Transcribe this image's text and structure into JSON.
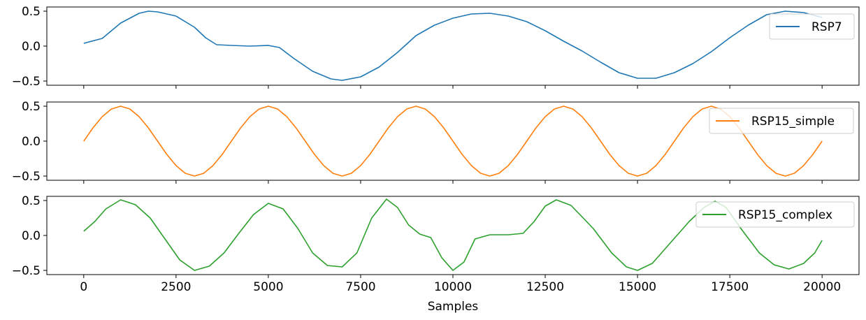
{
  "chart_data": {
    "type": "line",
    "xlabel": "Samples",
    "xlim": [
      -1000,
      21000
    ],
    "x_ticks": [
      0,
      2500,
      5000,
      7500,
      10000,
      12500,
      15000,
      17500,
      20000
    ],
    "x_tick_labels": [
      "0",
      "2500",
      "5000",
      "7500",
      "10000",
      "12500",
      "15000",
      "17500",
      "20000"
    ],
    "sample_count": 20000,
    "legend_position": "upper right",
    "subplots": [
      {
        "series_name": "RSP7",
        "color": "#1f77b4",
        "ylim": [
          -0.56,
          0.56
        ],
        "y_ticks": [
          -0.5,
          0.0,
          0.5
        ],
        "y_tick_labels": [
          "−0.5",
          "0.0",
          "0.5"
        ],
        "points": [
          [
            0,
            0.04
          ],
          [
            500,
            0.11
          ],
          [
            1000,
            0.33
          ],
          [
            1500,
            0.47
          ],
          [
            1750,
            0.5
          ],
          [
            2000,
            0.49
          ],
          [
            2500,
            0.43
          ],
          [
            3000,
            0.27
          ],
          [
            3300,
            0.12
          ],
          [
            3600,
            0.02
          ],
          [
            4000,
            0.01
          ],
          [
            4500,
            0.0
          ],
          [
            5000,
            0.01
          ],
          [
            5300,
            -0.02
          ],
          [
            5700,
            -0.18
          ],
          [
            6200,
            -0.36
          ],
          [
            6700,
            -0.47
          ],
          [
            7000,
            -0.49
          ],
          [
            7500,
            -0.44
          ],
          [
            8000,
            -0.3
          ],
          [
            8500,
            -0.09
          ],
          [
            9000,
            0.15
          ],
          [
            9500,
            0.3
          ],
          [
            10000,
            0.4
          ],
          [
            10500,
            0.46
          ],
          [
            11000,
            0.47
          ],
          [
            11500,
            0.43
          ],
          [
            12000,
            0.35
          ],
          [
            12500,
            0.22
          ],
          [
            13000,
            0.07
          ],
          [
            13500,
            -0.07
          ],
          [
            14000,
            -0.23
          ],
          [
            14500,
            -0.38
          ],
          [
            15000,
            -0.46
          ],
          [
            15500,
            -0.46
          ],
          [
            16000,
            -0.38
          ],
          [
            16500,
            -0.25
          ],
          [
            17000,
            -0.08
          ],
          [
            17500,
            0.12
          ],
          [
            18000,
            0.3
          ],
          [
            18500,
            0.45
          ],
          [
            19000,
            0.5
          ],
          [
            19500,
            0.48
          ],
          [
            20000,
            0.41
          ]
        ]
      },
      {
        "series_name": "RSP15_simple",
        "color": "#ff7f0e",
        "ylim": [
          -0.56,
          0.56
        ],
        "y_ticks": [
          -0.5,
          0.0,
          0.5
        ],
        "y_tick_labels": [
          "−0.5",
          "0.0",
          "0.5"
        ],
        "points": [
          [
            0,
            0.0
          ],
          [
            250,
            0.19
          ],
          [
            500,
            0.35
          ],
          [
            750,
            0.46
          ],
          [
            1000,
            0.5
          ],
          [
            1250,
            0.46
          ],
          [
            1500,
            0.35
          ],
          [
            1750,
            0.19
          ],
          [
            2000,
            0.0
          ],
          [
            2250,
            -0.19
          ],
          [
            2500,
            -0.35
          ],
          [
            2750,
            -0.46
          ],
          [
            3000,
            -0.5
          ],
          [
            3250,
            -0.46
          ],
          [
            3500,
            -0.35
          ],
          [
            3750,
            -0.19
          ],
          [
            4000,
            0.0
          ],
          [
            4250,
            0.19
          ],
          [
            4500,
            0.35
          ],
          [
            4750,
            0.46
          ],
          [
            5000,
            0.5
          ],
          [
            5250,
            0.46
          ],
          [
            5500,
            0.35
          ],
          [
            5750,
            0.19
          ],
          [
            6000,
            0.0
          ],
          [
            6250,
            -0.19
          ],
          [
            6500,
            -0.35
          ],
          [
            6750,
            -0.46
          ],
          [
            7000,
            -0.5
          ],
          [
            7250,
            -0.46
          ],
          [
            7500,
            -0.35
          ],
          [
            7750,
            -0.19
          ],
          [
            8000,
            0.0
          ],
          [
            8250,
            0.19
          ],
          [
            8500,
            0.35
          ],
          [
            8750,
            0.46
          ],
          [
            9000,
            0.5
          ],
          [
            9250,
            0.46
          ],
          [
            9500,
            0.35
          ],
          [
            9750,
            0.19
          ],
          [
            10000,
            0.0
          ],
          [
            10250,
            -0.19
          ],
          [
            10500,
            -0.35
          ],
          [
            10750,
            -0.46
          ],
          [
            11000,
            -0.5
          ],
          [
            11250,
            -0.46
          ],
          [
            11500,
            -0.35
          ],
          [
            11750,
            -0.19
          ],
          [
            12000,
            0.0
          ],
          [
            12250,
            0.19
          ],
          [
            12500,
            0.35
          ],
          [
            12750,
            0.46
          ],
          [
            13000,
            0.5
          ],
          [
            13250,
            0.46
          ],
          [
            13500,
            0.35
          ],
          [
            13750,
            0.19
          ],
          [
            14000,
            0.0
          ],
          [
            14250,
            -0.19
          ],
          [
            14500,
            -0.35
          ],
          [
            14750,
            -0.46
          ],
          [
            15000,
            -0.5
          ],
          [
            15250,
            -0.46
          ],
          [
            15500,
            -0.35
          ],
          [
            15750,
            -0.19
          ],
          [
            16000,
            0.0
          ],
          [
            16250,
            0.19
          ],
          [
            16500,
            0.35
          ],
          [
            16750,
            0.46
          ],
          [
            17000,
            0.5
          ],
          [
            17250,
            0.46
          ],
          [
            17500,
            0.35
          ],
          [
            17750,
            0.19
          ],
          [
            18000,
            0.0
          ],
          [
            18250,
            -0.19
          ],
          [
            18500,
            -0.35
          ],
          [
            18750,
            -0.46
          ],
          [
            19000,
            -0.5
          ],
          [
            19250,
            -0.46
          ],
          [
            19500,
            -0.35
          ],
          [
            19750,
            -0.19
          ],
          [
            20000,
            0.0
          ]
        ]
      },
      {
        "series_name": "RSP15_complex",
        "color": "#2ca02c",
        "ylim": [
          -0.56,
          0.56
        ],
        "y_ticks": [
          -0.5,
          0.0,
          0.5
        ],
        "y_tick_labels": [
          "−0.5",
          "0.0",
          "0.5"
        ],
        "points": [
          [
            0,
            0.06
          ],
          [
            300,
            0.2
          ],
          [
            600,
            0.38
          ],
          [
            1000,
            0.51
          ],
          [
            1400,
            0.44
          ],
          [
            1800,
            0.25
          ],
          [
            2200,
            -0.05
          ],
          [
            2600,
            -0.35
          ],
          [
            3000,
            -0.5
          ],
          [
            3400,
            -0.44
          ],
          [
            3800,
            -0.25
          ],
          [
            4200,
            0.03
          ],
          [
            4600,
            0.3
          ],
          [
            5000,
            0.46
          ],
          [
            5400,
            0.38
          ],
          [
            5800,
            0.1
          ],
          [
            6200,
            -0.25
          ],
          [
            6600,
            -0.43
          ],
          [
            7000,
            -0.45
          ],
          [
            7400,
            -0.25
          ],
          [
            7800,
            0.25
          ],
          [
            8200,
            0.52
          ],
          [
            8500,
            0.4
          ],
          [
            8800,
            0.15
          ],
          [
            9100,
            0.02
          ],
          [
            9400,
            -0.03
          ],
          [
            9700,
            -0.32
          ],
          [
            10000,
            -0.5
          ],
          [
            10300,
            -0.38
          ],
          [
            10600,
            -0.05
          ],
          [
            11000,
            0.01
          ],
          [
            11500,
            0.01
          ],
          [
            11900,
            0.03
          ],
          [
            12200,
            0.2
          ],
          [
            12500,
            0.42
          ],
          [
            12800,
            0.51
          ],
          [
            13200,
            0.43
          ],
          [
            13800,
            0.1
          ],
          [
            14300,
            -0.25
          ],
          [
            14700,
            -0.45
          ],
          [
            15000,
            -0.5
          ],
          [
            15400,
            -0.4
          ],
          [
            15900,
            -0.1
          ],
          [
            16400,
            0.2
          ],
          [
            16800,
            0.4
          ],
          [
            17100,
            0.49
          ],
          [
            17400,
            0.4
          ],
          [
            17800,
            0.1
          ],
          [
            18300,
            -0.25
          ],
          [
            18700,
            -0.42
          ],
          [
            19100,
            -0.48
          ],
          [
            19500,
            -0.4
          ],
          [
            19800,
            -0.25
          ],
          [
            20000,
            -0.07
          ]
        ]
      }
    ]
  }
}
